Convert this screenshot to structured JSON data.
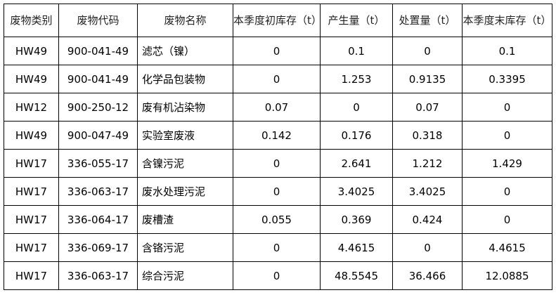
{
  "headers": [
    "废物类别",
    "废物代码",
    "废物名称",
    "本季度初库存（t）",
    "产生量（t）",
    "处置量（t）",
    "本季度末库存（t）"
  ],
  "rows": [
    [
      "HW49",
      "900-041-49",
      "滤芯（镍）",
      "0",
      "0.1",
      "0",
      "0.1"
    ],
    [
      "HW49",
      "900-041-49",
      "化学品包装物",
      "0",
      "1.253",
      "0.9135",
      "0.3395"
    ],
    [
      "HW12",
      "900-250-12",
      "废有机沾染物",
      "0.07",
      "0",
      "0.07",
      "0"
    ],
    [
      "HW49",
      "900-047-49",
      "实验室废液",
      "0.142",
      "0.176",
      "0.318",
      "0"
    ],
    [
      "HW17",
      "336-055-17",
      "含镍污泥",
      "0",
      "2.641",
      "1.212",
      "1.429"
    ],
    [
      "HW17",
      "336-063-17",
      "废水处理污泥",
      "0",
      "3.4025",
      "3.4025",
      "0"
    ],
    [
      "HW17",
      "336-064-17",
      "废槽渣",
      "0.055",
      "0.369",
      "0.424",
      "0"
    ],
    [
      "HW17",
      "336-069-17",
      "含铬污泥",
      "0",
      "4.4615",
      "0",
      "4.4615"
    ],
    [
      "HW17",
      "336-063-17",
      "综合污泥",
      "0",
      "48.5545",
      "36.466",
      "12.0885"
    ]
  ]
}
